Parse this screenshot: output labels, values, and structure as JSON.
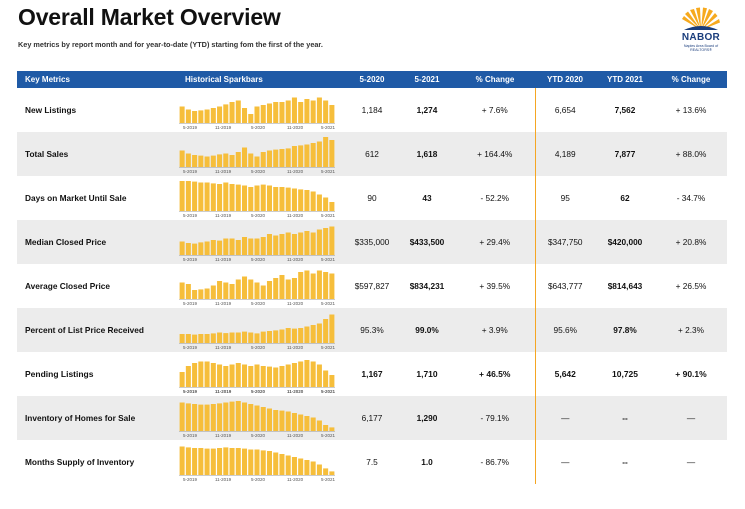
{
  "header": {
    "title": "Overall Market Overview",
    "subtitle": "Key metrics by report month and for year-to-date (YTD) starting fom the first of the year."
  },
  "logo": {
    "name": "NABOR",
    "tagline": "Naples Area Board of REALTORS®"
  },
  "colors": {
    "header_bg": "#1f5aa6",
    "bar": "#f6be3b",
    "separator": "#f5a623",
    "stripe": "#ececec"
  },
  "columns": [
    "Key Metrics",
    "Historical Sparkbars",
    "5-2020",
    "5-2021",
    "% Change",
    "YTD 2020",
    "YTD 2021",
    "% Change"
  ],
  "sparkbar_axis": [
    "5-2019",
    "11-2019",
    "5-2020",
    "11-2020",
    "5-2021"
  ],
  "rows": [
    {
      "metric": "New Listings",
      "v2020": "1,184",
      "v2021": "1,274",
      "pct": "+ 7.6%",
      "ytd2020": "6,654",
      "ytd2021": "7,562",
      "ytdpct": "+ 13.6%",
      "spark": [
        0.55,
        0.45,
        0.4,
        0.42,
        0.45,
        0.5,
        0.55,
        0.62,
        0.7,
        0.75,
        0.5,
        0.3,
        0.55,
        0.6,
        0.65,
        0.7,
        0.7,
        0.75,
        0.85,
        0.7,
        0.8,
        0.75,
        0.85,
        0.75,
        0.6
      ]
    },
    {
      "metric": "Total Sales",
      "v2020": "612",
      "v2021": "1,618",
      "pct": "+ 164.4%",
      "ytd2020": "4,189",
      "ytd2021": "7,877",
      "ytdpct": "+ 88.0%",
      "spark": [
        0.55,
        0.45,
        0.4,
        0.38,
        0.35,
        0.38,
        0.42,
        0.45,
        0.4,
        0.5,
        0.65,
        0.45,
        0.35,
        0.5,
        0.55,
        0.58,
        0.6,
        0.62,
        0.7,
        0.72,
        0.75,
        0.8,
        0.85,
        1.0,
        0.9
      ]
    },
    {
      "metric": "Days on Market Until Sale",
      "v2020": "90",
      "v2021": "43",
      "pct": "- 52.2%",
      "ytd2020": "95",
      "ytd2021": "62",
      "ytdpct": "- 34.7%",
      "spark": [
        1.0,
        1.0,
        0.98,
        0.95,
        0.95,
        0.92,
        0.9,
        0.95,
        0.9,
        0.88,
        0.85,
        0.8,
        0.85,
        0.88,
        0.85,
        0.8,
        0.8,
        0.78,
        0.75,
        0.72,
        0.7,
        0.65,
        0.55,
        0.45,
        0.3
      ]
    },
    {
      "metric": "Median Closed Price",
      "v2020": "$335,000",
      "v2021": "$433,500",
      "pct": "+ 29.4%",
      "ytd2020": "$347,750",
      "ytd2021": "$420,000",
      "ytdpct": "+ 20.8%",
      "spark": [
        0.45,
        0.4,
        0.38,
        0.42,
        0.45,
        0.5,
        0.48,
        0.55,
        0.55,
        0.5,
        0.6,
        0.55,
        0.55,
        0.6,
        0.7,
        0.65,
        0.7,
        0.75,
        0.7,
        0.75,
        0.8,
        0.75,
        0.85,
        0.9,
        0.95
      ]
    },
    {
      "metric": "Average Closed Price",
      "v2020": "$597,827",
      "v2021": "$834,231",
      "pct": "+ 39.5%",
      "ytd2020": "$643,777",
      "ytd2021": "$814,643",
      "ytdpct": "+ 26.5%",
      "spark": [
        0.55,
        0.5,
        0.3,
        0.32,
        0.35,
        0.45,
        0.6,
        0.55,
        0.5,
        0.65,
        0.75,
        0.65,
        0.55,
        0.45,
        0.6,
        0.7,
        0.8,
        0.65,
        0.7,
        0.9,
        0.95,
        0.85,
        0.95,
        0.9,
        0.85
      ]
    },
    {
      "metric": "Percent of List Price Received",
      "v2020": "95.3%",
      "v2021": "99.0%",
      "pct": "+ 3.9%",
      "ytd2020": "95.6%",
      "ytd2021": "97.8%",
      "ytdpct": "+ 2.3%",
      "spark": [
        0.3,
        0.3,
        0.28,
        0.3,
        0.3,
        0.32,
        0.35,
        0.33,
        0.35,
        0.35,
        0.38,
        0.35,
        0.32,
        0.38,
        0.4,
        0.42,
        0.45,
        0.5,
        0.48,
        0.5,
        0.55,
        0.6,
        0.65,
        0.8,
        0.95
      ]
    },
    {
      "metric": "Pending Listings",
      "v2020": "1,167",
      "v2021": "1,710",
      "pct": "+ 46.5%",
      "ytd2020": "5,642",
      "ytd2021": "10,725",
      "ytdpct": "+ 90.1%",
      "spark": [
        0.5,
        0.7,
        0.8,
        0.85,
        0.85,
        0.8,
        0.75,
        0.7,
        0.75,
        0.8,
        0.75,
        0.7,
        0.75,
        0.7,
        0.68,
        0.65,
        0.7,
        0.75,
        0.8,
        0.85,
        0.9,
        0.85,
        0.75,
        0.55,
        0.4
      ]
    },
    {
      "metric": "Inventory of Homes for Sale",
      "v2020": "6,177",
      "v2021": "1,290",
      "pct": "- 79.1%",
      "ytd2020": "—",
      "ytd2021": "--",
      "ytdpct": "—",
      "spark": [
        0.95,
        0.92,
        0.9,
        0.88,
        0.88,
        0.9,
        0.92,
        0.95,
        0.98,
        1.0,
        0.95,
        0.9,
        0.85,
        0.8,
        0.75,
        0.7,
        0.68,
        0.65,
        0.6,
        0.55,
        0.5,
        0.45,
        0.35,
        0.2,
        0.12
      ]
    },
    {
      "metric": "Months Supply of Inventory",
      "v2020": "7.5",
      "v2021": "1.0",
      "pct": "- 86.7%",
      "ytd2020": "—",
      "ytd2021": "--",
      "ytdpct": "—",
      "spark": [
        0.95,
        0.92,
        0.9,
        0.9,
        0.88,
        0.88,
        0.9,
        0.92,
        0.9,
        0.9,
        0.88,
        0.85,
        0.85,
        0.82,
        0.8,
        0.75,
        0.7,
        0.65,
        0.6,
        0.55,
        0.5,
        0.45,
        0.35,
        0.22,
        0.12
      ]
    }
  ]
}
